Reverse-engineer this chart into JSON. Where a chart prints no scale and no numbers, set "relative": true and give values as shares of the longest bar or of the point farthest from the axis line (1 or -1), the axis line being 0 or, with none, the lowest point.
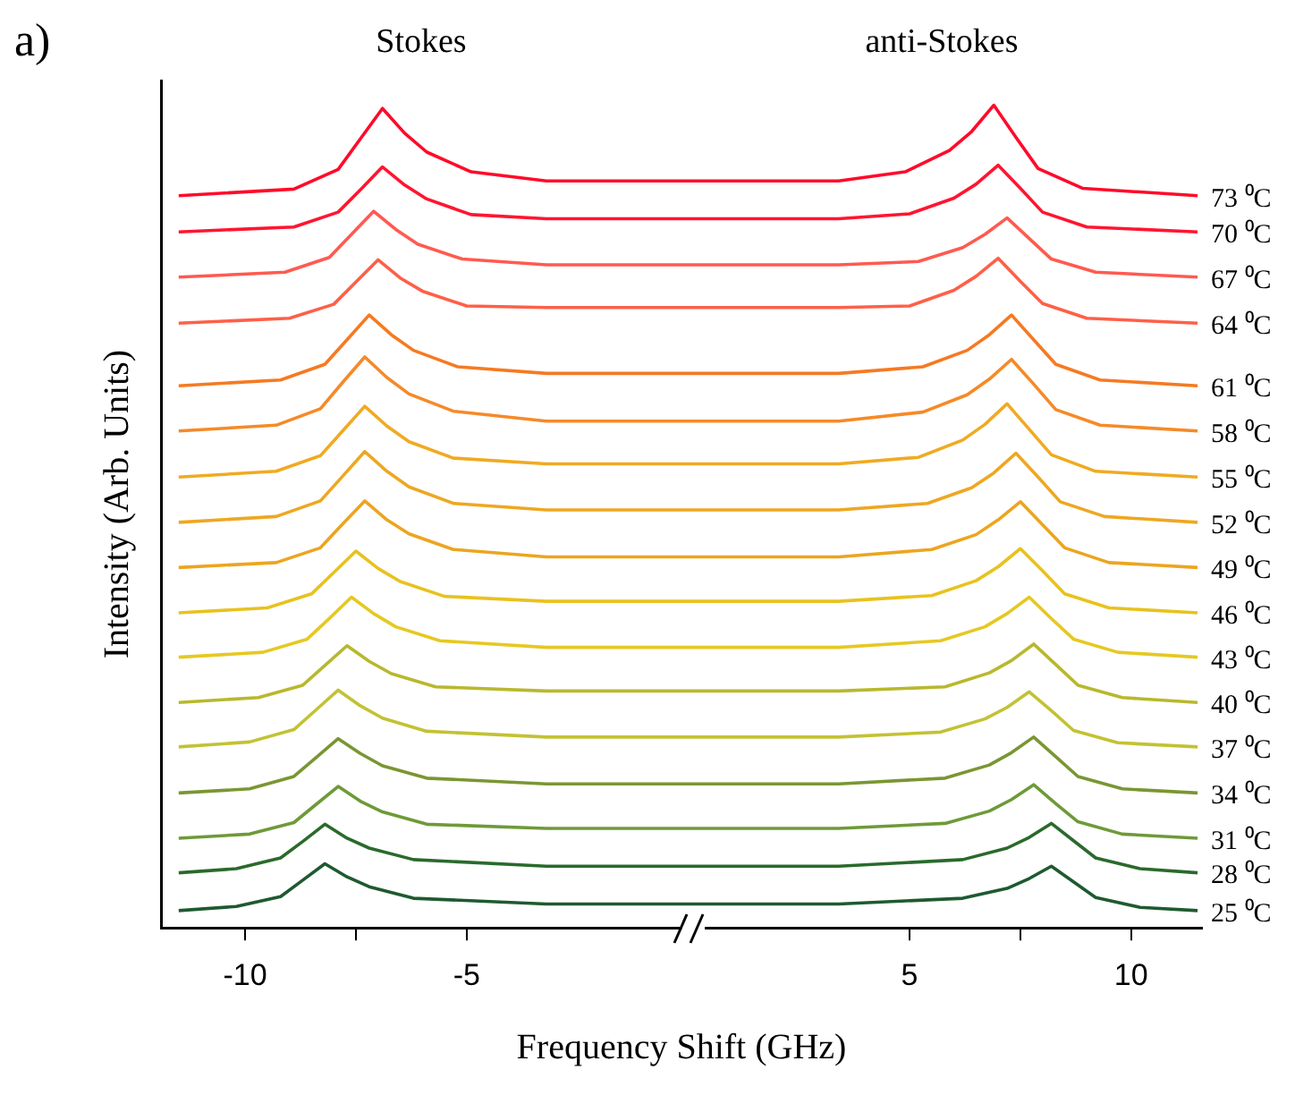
{
  "chart_data": {
    "type": "line",
    "relative": true,
    "xlabel": "Frequency Shift (GHz)",
    "ylabel": "Intensity (Arb. Units)",
    "annotations": [
      "a)",
      "Stokes",
      "anti-Stokes"
    ],
    "xlim": [
      -11.9,
      11.6
    ],
    "xticks": [
      -10,
      {
        "value": -7.5,
        "label": null
      },
      -5,
      5,
      {
        "value": 7.5,
        "label": null
      },
      10
    ],
    "grid": false,
    "legend": false,
    "marker": "none",
    "line_style": "solid",
    "series": [
      {
        "name": "73 ⁰C",
        "color": "#ff0a2a",
        "x": [
          -11.5,
          -8.9,
          -7.9,
          -7.4,
          -6.9,
          -6.4,
          -5.9,
          -4.9,
          -3.2,
          3.4,
          4.9,
          5.9,
          6.4,
          6.9,
          7.4,
          7.9,
          8.9,
          11.5
        ],
        "values": [
          0.89,
          0.898,
          0.922,
          0.959,
          0.996,
          0.966,
          0.943,
          0.919,
          0.908,
          0.908,
          0.919,
          0.945,
          0.968,
          1.0,
          0.961,
          0.923,
          0.899,
          0.89
        ]
      },
      {
        "name": "70 ⁰C",
        "color": "#ff1530",
        "x": [
          -11.5,
          -8.9,
          -7.9,
          -7.4,
          -6.9,
          -6.4,
          -5.9,
          -4.9,
          -3.2,
          3.4,
          5,
          6,
          6.5,
          7,
          7.5,
          8,
          9,
          11.5
        ],
        "values": [
          0.846,
          0.852,
          0.87,
          0.897,
          0.925,
          0.903,
          0.886,
          0.867,
          0.862,
          0.862,
          0.868,
          0.887,
          0.904,
          0.927,
          0.899,
          0.87,
          0.852,
          0.846
        ]
      },
      {
        "name": "67 ⁰C",
        "color": "#ff5a50",
        "x": [
          -11.5,
          -9.1,
          -8.1,
          -7.6,
          -7.1,
          -6.6,
          -6.1,
          -5.1,
          -3.2,
          3.4,
          5.2,
          6.2,
          6.7,
          7.2,
          7.7,
          8.2,
          9.2,
          11.5
        ],
        "values": [
          0.791,
          0.797,
          0.815,
          0.843,
          0.871,
          0.849,
          0.831,
          0.813,
          0.806,
          0.806,
          0.81,
          0.827,
          0.843,
          0.863,
          0.838,
          0.813,
          0.797,
          0.791
        ]
      },
      {
        "name": "64 ⁰C",
        "color": "#ff5f48",
        "x": [
          -11.5,
          -9,
          -8,
          -7.5,
          -7,
          -6.5,
          -6,
          -5,
          -3.2,
          3.4,
          5,
          6,
          6.5,
          7,
          7.5,
          8,
          9,
          11.5
        ],
        "values": [
          0.735,
          0.741,
          0.758,
          0.785,
          0.812,
          0.79,
          0.774,
          0.756,
          0.754,
          0.754,
          0.756,
          0.775,
          0.792,
          0.814,
          0.786,
          0.759,
          0.741,
          0.735
        ]
      },
      {
        "name": "61 ⁰C",
        "color": "#f57a22",
        "x": [
          -11.5,
          -9.2,
          -8.2,
          -7.7,
          -7.2,
          -6.7,
          -6.2,
          -5.2,
          -3.2,
          3.4,
          5.3,
          6.3,
          6.8,
          7.3,
          7.8,
          8.3,
          9.3,
          11.5
        ],
        "values": [
          0.659,
          0.666,
          0.685,
          0.715,
          0.745,
          0.721,
          0.702,
          0.682,
          0.674,
          0.674,
          0.682,
          0.702,
          0.721,
          0.745,
          0.715,
          0.685,
          0.666,
          0.659
        ]
      },
      {
        "name": "58 ⁰C",
        "color": "#f58a28",
        "x": [
          -11.5,
          -9.3,
          -8.3,
          -7.8,
          -7.3,
          -6.8,
          -6.3,
          -5.3,
          -3.2,
          3.4,
          5.3,
          6.3,
          6.8,
          7.3,
          7.8,
          8.3,
          9.3,
          11.5
        ],
        "values": [
          0.604,
          0.611,
          0.631,
          0.663,
          0.694,
          0.669,
          0.649,
          0.628,
          0.616,
          0.616,
          0.627,
          0.648,
          0.667,
          0.691,
          0.661,
          0.63,
          0.611,
          0.604
        ]
      },
      {
        "name": "55 ⁰C",
        "color": "#f0aa22",
        "x": [
          -11.5,
          -9.3,
          -8.3,
          -7.8,
          -7.3,
          -6.8,
          -6.3,
          -5.3,
          -3.2,
          3.4,
          5.2,
          6.2,
          6.7,
          7.2,
          7.7,
          8.2,
          9.2,
          11.5
        ],
        "values": [
          0.548,
          0.555,
          0.574,
          0.604,
          0.634,
          0.61,
          0.591,
          0.571,
          0.564,
          0.564,
          0.572,
          0.593,
          0.612,
          0.637,
          0.606,
          0.575,
          0.555,
          0.548
        ]
      },
      {
        "name": "52 ⁰C",
        "color": "#eea722",
        "x": [
          -11.5,
          -9.3,
          -8.3,
          -7.8,
          -7.3,
          -6.8,
          -6.3,
          -5.3,
          -3.2,
          3.4,
          5.4,
          6.4,
          6.9,
          7.4,
          7.9,
          8.4,
          9.4,
          11.5
        ],
        "values": [
          0.493,
          0.5,
          0.519,
          0.549,
          0.579,
          0.555,
          0.536,
          0.516,
          0.508,
          0.508,
          0.516,
          0.535,
          0.553,
          0.577,
          0.548,
          0.518,
          0.5,
          0.493
        ]
      },
      {
        "name": "49 ⁰C",
        "color": "#eca520",
        "x": [
          -11.5,
          -9.3,
          -8.3,
          -7.8,
          -7.3,
          -6.8,
          -6.3,
          -5.3,
          -3.2,
          3.4,
          5.5,
          6.5,
          7,
          7.5,
          8,
          8.5,
          9.5,
          11.5
        ],
        "values": [
          0.438,
          0.444,
          0.462,
          0.491,
          0.519,
          0.496,
          0.479,
          0.46,
          0.451,
          0.451,
          0.46,
          0.478,
          0.496,
          0.518,
          0.49,
          0.462,
          0.444,
          0.438
        ]
      },
      {
        "name": "46 ⁰C",
        "color": "#e8c21e",
        "x": [
          -11.5,
          -9.5,
          -8.5,
          -8,
          -7.5,
          -7,
          -6.5,
          -5.5,
          -3.2,
          3.4,
          5.5,
          6.5,
          7,
          7.5,
          8,
          8.5,
          9.5,
          11.5
        ],
        "values": [
          0.383,
          0.389,
          0.406,
          0.432,
          0.458,
          0.437,
          0.421,
          0.403,
          0.397,
          0.397,
          0.404,
          0.422,
          0.439,
          0.461,
          0.434,
          0.406,
          0.389,
          0.383
        ]
      },
      {
        "name": "43 ⁰C",
        "color": "#e6c822",
        "x": [
          -11.5,
          -9.6,
          -8.6,
          -8.1,
          -7.6,
          -7.1,
          -6.6,
          -5.6,
          -3.2,
          3.4,
          5.7,
          6.7,
          7.2,
          7.7,
          8.2,
          8.7,
          9.7,
          11.5
        ],
        "values": [
          0.329,
          0.335,
          0.351,
          0.376,
          0.402,
          0.382,
          0.366,
          0.349,
          0.341,
          0.341,
          0.349,
          0.366,
          0.382,
          0.402,
          0.376,
          0.351,
          0.335,
          0.329
        ]
      },
      {
        "name": "40 ⁰C",
        "color": "#b8b82e",
        "x": [
          -11.5,
          -9.7,
          -8.7,
          -8.2,
          -7.7,
          -7.2,
          -6.7,
          -5.7,
          -3.2,
          3.4,
          5.8,
          6.8,
          7.3,
          7.8,
          8.3,
          8.8,
          9.8,
          11.5
        ],
        "values": [
          0.274,
          0.28,
          0.295,
          0.319,
          0.343,
          0.324,
          0.309,
          0.293,
          0.288,
          0.288,
          0.293,
          0.31,
          0.325,
          0.345,
          0.32,
          0.295,
          0.28,
          0.274
        ]
      },
      {
        "name": "37 ⁰C",
        "color": "#c2c234",
        "x": [
          -11.5,
          -9.9,
          -8.9,
          -8.4,
          -7.9,
          -7.4,
          -6.9,
          -5.9,
          -3.2,
          3.4,
          5.7,
          6.7,
          7.2,
          7.7,
          8.2,
          8.7,
          9.7,
          11.5
        ],
        "values": [
          0.22,
          0.226,
          0.241,
          0.265,
          0.289,
          0.27,
          0.255,
          0.239,
          0.232,
          0.232,
          0.238,
          0.254,
          0.268,
          0.287,
          0.264,
          0.24,
          0.225,
          0.22
        ]
      },
      {
        "name": "34 ⁰C",
        "color": "#7a9632",
        "x": [
          -11.5,
          -9.9,
          -8.9,
          -8.4,
          -7.9,
          -7.4,
          -6.9,
          -5.9,
          -3.2,
          3.4,
          5.8,
          6.8,
          7.3,
          7.8,
          8.3,
          8.8,
          9.8,
          11.5
        ],
        "values": [
          0.164,
          0.169,
          0.184,
          0.207,
          0.23,
          0.212,
          0.197,
          0.182,
          0.175,
          0.175,
          0.182,
          0.198,
          0.213,
          0.232,
          0.208,
          0.184,
          0.169,
          0.164
        ]
      },
      {
        "name": "31 ⁰C",
        "color": "#6e9a38",
        "x": [
          -11.5,
          -9.9,
          -8.9,
          -8.4,
          -7.9,
          -7.4,
          -6.9,
          -5.9,
          -3.2,
          3.4,
          5.8,
          6.8,
          7.3,
          7.8,
          8.3,
          8.8,
          9.8,
          11.5
        ],
        "values": [
          0.109,
          0.114,
          0.128,
          0.15,
          0.172,
          0.154,
          0.141,
          0.126,
          0.121,
          0.121,
          0.127,
          0.142,
          0.156,
          0.174,
          0.151,
          0.129,
          0.114,
          0.109
        ]
      },
      {
        "name": "28 ⁰C",
        "color": "#2a6a2c",
        "x": [
          -11.5,
          -10.2,
          -9.2,
          -8.7,
          -8.2,
          -7.7,
          -7.2,
          -6.2,
          -3.2,
          3.4,
          6.2,
          7.2,
          7.7,
          8.2,
          8.7,
          9.2,
          10.2,
          11.5
        ],
        "values": [
          0.067,
          0.072,
          0.085,
          0.105,
          0.126,
          0.109,
          0.097,
          0.083,
          0.075,
          0.075,
          0.083,
          0.097,
          0.11,
          0.127,
          0.106,
          0.085,
          0.072,
          0.067
        ]
      },
      {
        "name": "25 ⁰C",
        "color": "#1e5a30",
        "x": [
          -11.5,
          -10.2,
          -9.2,
          -8.7,
          -8.2,
          -7.7,
          -7.2,
          -6.2,
          -3.2,
          3.4,
          6.2,
          7.2,
          7.7,
          8.2,
          8.7,
          9.2,
          10.2,
          11.5
        ],
        "values": [
          0.021,
          0.026,
          0.038,
          0.058,
          0.078,
          0.062,
          0.05,
          0.036,
          0.029,
          0.029,
          0.036,
          0.048,
          0.06,
          0.075,
          0.056,
          0.037,
          0.025,
          0.021
        ]
      }
    ]
  }
}
